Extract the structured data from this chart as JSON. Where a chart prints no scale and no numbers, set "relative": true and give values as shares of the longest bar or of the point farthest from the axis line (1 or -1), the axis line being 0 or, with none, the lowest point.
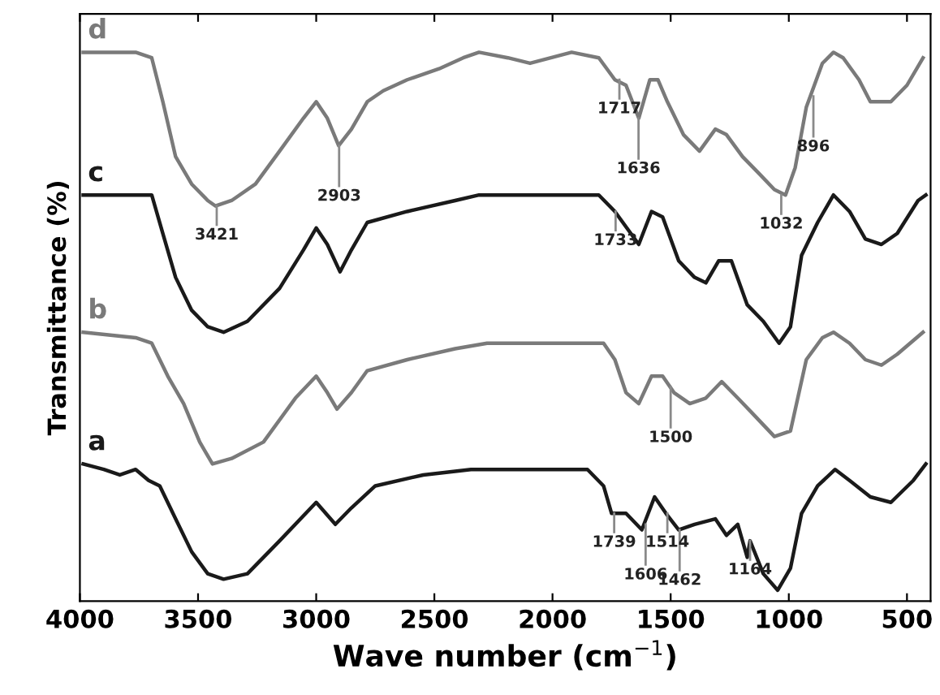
{
  "chart_data": {
    "type": "line",
    "relative": true,
    "xlabel": "Wave number (cm$^{−1}$)",
    "ylabel": "Transmittance (%)",
    "xlim": [
      4000,
      400
    ],
    "xticks": [
      4000,
      3500,
      3000,
      2500,
      2000,
      1500,
      1000,
      500
    ],
    "grid": false,
    "legend": false,
    "marker": "none",
    "line_style": "solid",
    "series": [
      {
        "name": "d",
        "color": "#7a7a7a",
        "x": [
          3986,
          3764,
          3696,
          3649,
          3595,
          3527,
          3459,
          3426,
          3358,
          3257,
          3155,
          3054,
          3000,
          2953,
          2905,
          2851,
          2784,
          2716,
          2615,
          2480,
          2378,
          2311,
          2189,
          2095,
          1919,
          1804,
          1736,
          1689,
          1635,
          1588,
          1554,
          1514,
          1446,
          1378,
          1311,
          1264,
          1196,
          1128,
          1061,
          1014,
          973,
          926,
          858,
          811,
          770,
          703,
          655,
          568,
          500,
          432
        ],
        "values": [
          1.0,
          1.0,
          0.99,
          0.91,
          0.81,
          0.76,
          0.73,
          0.72,
          0.73,
          0.76,
          0.82,
          0.88,
          0.91,
          0.88,
          0.83,
          0.86,
          0.91,
          0.93,
          0.95,
          0.97,
          0.99,
          1.0,
          0.99,
          0.98,
          1.0,
          0.99,
          0.95,
          0.94,
          0.88,
          0.95,
          0.95,
          0.91,
          0.85,
          0.82,
          0.86,
          0.85,
          0.81,
          0.78,
          0.75,
          0.74,
          0.79,
          0.9,
          0.98,
          1.0,
          0.99,
          0.95,
          0.91,
          0.91,
          0.94,
          0.99
        ]
      },
      {
        "name": "c",
        "color": "#1a1a1a",
        "x": [
          3986,
          3696,
          3649,
          3595,
          3527,
          3459,
          3392,
          3291,
          3155,
          3054,
          3000,
          2953,
          2899,
          2851,
          2784,
          2615,
          2412,
          2311,
          2189,
          1959,
          1804,
          1736,
          1635,
          1581,
          1534,
          1466,
          1399,
          1351,
          1297,
          1243,
          1176,
          1108,
          1041,
          993,
          946,
          878,
          811,
          743,
          676,
          608,
          541,
          453,
          420
        ],
        "values": [
          0.74,
          0.74,
          0.67,
          0.59,
          0.53,
          0.5,
          0.49,
          0.51,
          0.57,
          0.64,
          0.68,
          0.65,
          0.6,
          0.64,
          0.69,
          0.71,
          0.73,
          0.74,
          0.74,
          0.74,
          0.74,
          0.71,
          0.65,
          0.71,
          0.7,
          0.62,
          0.59,
          0.58,
          0.62,
          0.62,
          0.54,
          0.51,
          0.47,
          0.5,
          0.63,
          0.69,
          0.74,
          0.71,
          0.66,
          0.65,
          0.67,
          0.73,
          0.74
        ]
      },
      {
        "name": "b",
        "color": "#7a7a7a",
        "x": [
          3986,
          3764,
          3696,
          3628,
          3561,
          3493,
          3439,
          3358,
          3223,
          3088,
          3000,
          2953,
          2912,
          2851,
          2784,
          2615,
          2412,
          2277,
          2189,
          1959,
          1784,
          1736,
          1689,
          1635,
          1581,
          1534,
          1486,
          1419,
          1351,
          1284,
          1216,
          1149,
          1061,
          993,
          926,
          858,
          811,
          743,
          676,
          608,
          541,
          432
        ],
        "values": [
          0.49,
          0.48,
          0.47,
          0.41,
          0.36,
          0.29,
          0.25,
          0.26,
          0.29,
          0.37,
          0.41,
          0.38,
          0.35,
          0.38,
          0.42,
          0.44,
          0.46,
          0.47,
          0.47,
          0.47,
          0.47,
          0.44,
          0.38,
          0.36,
          0.41,
          0.41,
          0.38,
          0.36,
          0.37,
          0.4,
          0.37,
          0.34,
          0.3,
          0.31,
          0.44,
          0.48,
          0.49,
          0.47,
          0.44,
          0.43,
          0.45,
          0.49
        ]
      },
      {
        "name": "a",
        "color": "#1a1a1a",
        "x": [
          3986,
          3899,
          3831,
          3764,
          3709,
          3662,
          3595,
          3527,
          3459,
          3392,
          3291,
          3155,
          3000,
          2919,
          2851,
          2750,
          2547,
          2345,
          2189,
          1959,
          1852,
          1784,
          1750,
          1689,
          1622,
          1568,
          1520,
          1466,
          1399,
          1311,
          1264,
          1216,
          1176,
          1164,
          1108,
          1047,
          993,
          946,
          878,
          804,
          743,
          655,
          568,
          473,
          420
        ],
        "values": [
          0.25,
          0.24,
          0.23,
          0.24,
          0.22,
          0.21,
          0.15,
          0.09,
          0.05,
          0.04,
          0.05,
          0.11,
          0.18,
          0.14,
          0.17,
          0.21,
          0.23,
          0.24,
          0.24,
          0.24,
          0.24,
          0.21,
          0.16,
          0.16,
          0.13,
          0.19,
          0.16,
          0.13,
          0.14,
          0.15,
          0.12,
          0.14,
          0.08,
          0.11,
          0.05,
          0.02,
          0.06,
          0.16,
          0.21,
          0.24,
          0.22,
          0.19,
          0.18,
          0.22,
          0.25
        ]
      }
    ],
    "annotations": [
      {
        "text": "3421",
        "x": 3421,
        "y": 0.72
      },
      {
        "text": "2903",
        "x": 2903,
        "y": 0.83
      },
      {
        "text": "1717",
        "x": 1717,
        "y": 0.95
      },
      {
        "text": "1636",
        "x": 1636,
        "y": 0.88
      },
      {
        "text": "1032",
        "x": 1032,
        "y": 0.74
      },
      {
        "text": "896",
        "x": 896,
        "y": 0.92
      },
      {
        "text": "1733",
        "x": 1733,
        "y": 0.71
      },
      {
        "text": "1500",
        "x": 1500,
        "y": 0.39
      },
      {
        "text": "1739",
        "x": 1739,
        "y": 0.16
      },
      {
        "text": "1606",
        "x": 1606,
        "y": 0.14
      },
      {
        "text": "1514",
        "x": 1514,
        "y": 0.16
      },
      {
        "text": "1462",
        "x": 1462,
        "y": 0.13
      },
      {
        "text": "1164",
        "x": 1164,
        "y": 0.11
      }
    ]
  }
}
